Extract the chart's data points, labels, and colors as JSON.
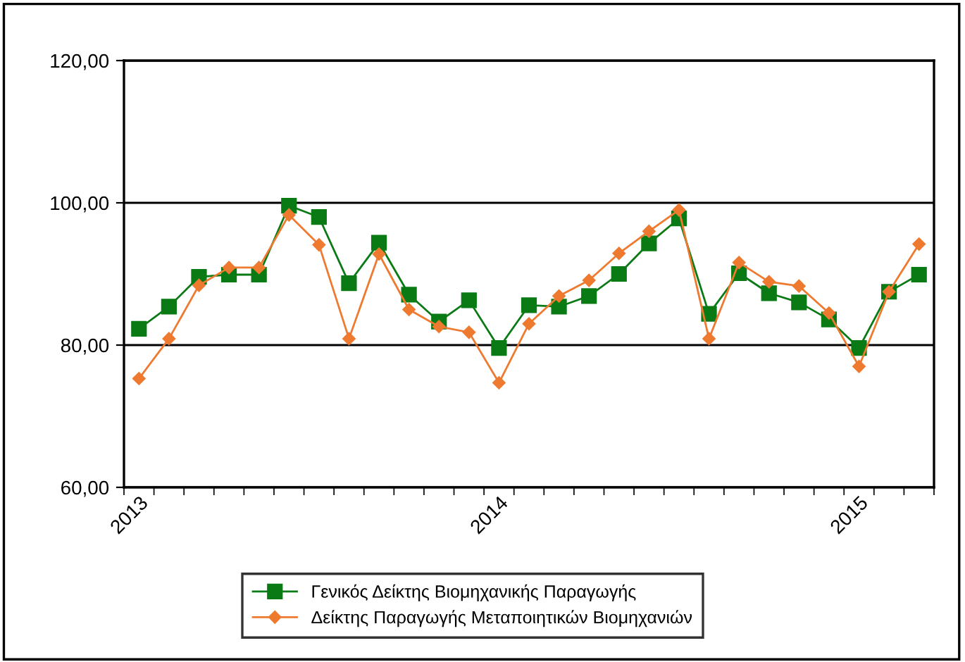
{
  "chart_data": {
    "type": "line",
    "categories": [
      "2013",
      null,
      null,
      null,
      null,
      null,
      null,
      null,
      null,
      null,
      null,
      null,
      "2014",
      null,
      null,
      null,
      null,
      null,
      null,
      null,
      null,
      null,
      null,
      null,
      "2015",
      null,
      null
    ],
    "series": [
      {
        "name": "Γενικός Δείκτης Βιομηχανικής Παραγωγής",
        "color": "#0a7a14",
        "marker": "square",
        "values": [
          82.3,
          85.4,
          89.6,
          89.9,
          89.9,
          99.6,
          98.0,
          88.7,
          94.4,
          87.1,
          83.3,
          86.3,
          79.6,
          85.6,
          85.4,
          86.9,
          90.0,
          94.3,
          97.8,
          84.4,
          90.1,
          87.3,
          86.0,
          83.6,
          79.6,
          87.5,
          89.9
        ]
      },
      {
        "name": "Δείκτης Παραγωγής Μεταποιητικών Βιομηχανιών",
        "color": "#ee7a30",
        "marker": "diamond",
        "values": [
          75.3,
          80.9,
          88.4,
          90.9,
          90.9,
          98.3,
          94.1,
          80.9,
          92.8,
          85.0,
          82.6,
          81.8,
          74.7,
          83.0,
          86.9,
          89.1,
          92.9,
          96.0,
          99.0,
          80.9,
          91.6,
          88.9,
          88.3,
          84.5,
          77.0,
          87.5,
          94.2
        ]
      }
    ],
    "ylim": [
      60,
      120
    ],
    "yticks": [
      {
        "value": 60,
        "label": "60,00"
      },
      {
        "value": 80,
        "label": "80,00"
      },
      {
        "value": 100,
        "label": "100,00"
      },
      {
        "value": 120,
        "label": "120,00"
      }
    ],
    "grid": "y",
    "legend": "bottom",
    "line_style": "solid"
  }
}
